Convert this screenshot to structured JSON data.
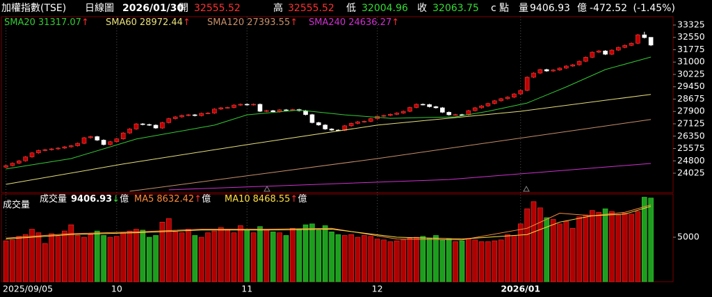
{
  "header": {
    "name": "加權指數(TSE)",
    "period": "日線圖",
    "date": "2026/01/30",
    "open_label": "開",
    "open": 32555.52,
    "high_label": "高",
    "high": 32555.52,
    "low_label": "低",
    "low": 32004.96,
    "close_label": "收",
    "close": 32063.75,
    "close_flag": "c",
    "unit_label": "點",
    "volume_label": "量",
    "volume": 9406.93,
    "volume_unit": "億",
    "change": -472.52,
    "change_pct": "(-1.45%)"
  },
  "chart_data": [
    {
      "type": "candlestick",
      "up_color": "#c00000",
      "down_color": "#ffffff",
      "ylim": [
        22890,
        33674
      ],
      "yticks": [
        33325,
        32550,
        31775,
        31000,
        30225,
        29450,
        28675,
        27900,
        27125,
        26350,
        25575,
        24800,
        24025
      ],
      "open": [
        24400,
        24500,
        24650,
        24800,
        25050,
        25300,
        25450,
        25500,
        25550,
        25600,
        25680,
        25750,
        25900,
        26250,
        26320,
        26100,
        25820,
        26000,
        26180,
        26550,
        26800,
        27120,
        27080,
        27040,
        26860,
        27200,
        27450,
        27560,
        27650,
        27690,
        27640,
        27780,
        27800,
        28050,
        28130,
        28150,
        28300,
        28350,
        28320,
        28350,
        27910,
        27950,
        27880,
        28000,
        27990,
        28020,
        27950,
        27700,
        27200,
        27050,
        26800,
        26730,
        26720,
        27000,
        27150,
        27250,
        27280,
        27450,
        27600,
        27650,
        27720,
        27800,
        27910,
        28150,
        28350,
        28330,
        28200,
        28130,
        27850,
        27690,
        27700,
        27690,
        27950,
        28130,
        28250,
        28400,
        28570,
        28700,
        28800,
        29000,
        29220,
        30050,
        30310,
        30530,
        30440,
        30500,
        30620,
        30750,
        30830,
        31050,
        31300,
        31620,
        31700,
        31490,
        31750,
        31920,
        32050,
        32180,
        32710,
        32555.52
      ],
      "high": [
        24550,
        24700,
        24850,
        25100,
        25350,
        25500,
        25550,
        25600,
        25650,
        25730,
        25800,
        25950,
        26300,
        26370,
        26370,
        26150,
        26050,
        26230,
        26600,
        26850,
        27170,
        27170,
        27130,
        27090,
        27250,
        27500,
        27610,
        27700,
        27740,
        27740,
        27830,
        27850,
        28100,
        28180,
        28200,
        28350,
        28400,
        28400,
        28400,
        28400,
        28000,
        28000,
        28050,
        28050,
        28070,
        28070,
        28000,
        27750,
        27250,
        27100,
        26850,
        26780,
        27050,
        27200,
        27300,
        27330,
        27500,
        27650,
        27700,
        27770,
        27850,
        27960,
        28200,
        28400,
        28400,
        28380,
        28250,
        28180,
        27900,
        27750,
        27750,
        28000,
        28180,
        28300,
        28450,
        28620,
        28750,
        28850,
        29050,
        29270,
        30100,
        30360,
        30580,
        30580,
        30550,
        30670,
        30800,
        30880,
        31100,
        31350,
        31670,
        31750,
        31750,
        31800,
        31970,
        32100,
        32230,
        32760,
        32900,
        32555.52
      ],
      "low": [
        24350,
        24450,
        24600,
        24750,
        25000,
        25250,
        25400,
        25450,
        25500,
        25550,
        25630,
        25700,
        25850,
        26200,
        26050,
        25770,
        25770,
        25950,
        26130,
        26500,
        26750,
        27030,
        26990,
        26810,
        26810,
        27150,
        27400,
        27510,
        27600,
        27590,
        27590,
        27730,
        27750,
        28000,
        28080,
        28100,
        28250,
        28270,
        28270,
        27860,
        27860,
        27830,
        27830,
        27940,
        27940,
        27900,
        27650,
        27150,
        27000,
        26750,
        26680,
        26670,
        26670,
        26950,
        27100,
        27200,
        27230,
        27400,
        27550,
        27600,
        27670,
        27750,
        27860,
        28100,
        28280,
        28150,
        28080,
        27800,
        27640,
        27640,
        27640,
        27640,
        27900,
        28080,
        28200,
        28350,
        28520,
        28650,
        28750,
        28950,
        29170,
        30000,
        30260,
        30390,
        30390,
        30450,
        30570,
        30700,
        30780,
        31000,
        31250,
        31570,
        31440,
        31440,
        31700,
        31870,
        32000,
        32130,
        32485,
        32004.96
      ],
      "close": [
        24500,
        24650,
        24800,
        25050,
        25300,
        25450,
        25500,
        25550,
        25600,
        25680,
        25750,
        25900,
        26250,
        26320,
        26100,
        25820,
        26000,
        26180,
        26550,
        26800,
        27120,
        27080,
        27040,
        26860,
        27200,
        27450,
        27560,
        27650,
        27690,
        27640,
        27780,
        27800,
        28050,
        28130,
        28150,
        28300,
        28350,
        28320,
        28350,
        27910,
        27950,
        27880,
        28000,
        27990,
        28020,
        27950,
        27700,
        27200,
        27050,
        26800,
        26730,
        26720,
        27000,
        27150,
        27250,
        27280,
        27450,
        27600,
        27650,
        27720,
        27800,
        27910,
        28150,
        28350,
        28330,
        28200,
        28130,
        27850,
        27690,
        27700,
        27690,
        27950,
        28130,
        28250,
        28400,
        28570,
        28700,
        28800,
        29000,
        29220,
        30050,
        30310,
        30530,
        30440,
        30500,
        30620,
        30750,
        30830,
        31050,
        31300,
        31620,
        31700,
        31490,
        31750,
        31920,
        32050,
        32180,
        32710,
        32535,
        32063.75
      ],
      "series": [
        {
          "name": "SMA20",
          "color": "#33cc33",
          "legend_value": 31317.07,
          "arrow": "↑",
          "arrow_color": "#ff3030",
          "x": [
            0,
            10,
            20,
            32,
            37,
            45,
            52,
            59,
            69,
            74,
            80,
            86,
            92,
            99
          ],
          "values": [
            24290,
            24940,
            26170,
            27040,
            27690,
            27990,
            27690,
            27470,
            27560,
            27910,
            28430,
            29440,
            30530,
            31317.07
          ]
        },
        {
          "name": "SMA60",
          "color": "#e8e07a",
          "legend_value": 28972.44,
          "arrow": "↑",
          "arrow_color": "#ff3030",
          "x": [
            0,
            18,
            37,
            57,
            79,
            99
          ],
          "values": [
            23325,
            24600,
            25815,
            27040,
            27910,
            28972.44
          ]
        },
        {
          "name": "SMA120",
          "color": "#c8906a",
          "legend_value": 27393.55,
          "arrow": "↑",
          "arrow_color": "#ff3030",
          "x": [
            19,
            57,
            99
          ],
          "values": [
            22890,
            24940,
            27393.55
          ]
        },
        {
          "name": "SMA240",
          "color": "#d030d0",
          "legend_value": 24636.27,
          "arrow": "↑",
          "arrow_color": "#ff3030",
          "x": [
            25,
            68,
            99
          ],
          "values": [
            22980,
            23630,
            24636.27
          ]
        }
      ]
    },
    {
      "type": "bar",
      "title": "成交量",
      "name": "成交量",
      "legend_value": 9406.93,
      "arrow": "↓",
      "arrow_color": "#33dd33",
      "unit": "億",
      "up_color": "#b00000",
      "down_color": "#1e9e1e",
      "ylim": [
        0,
        9850
      ],
      "yticks": [
        5000
      ],
      "xlim": [
        -0.7,
        102.4
      ],
      "xticks": [
        {
          "value": 0,
          "label": "2025/09/05"
        },
        {
          "value": 17,
          "label": "10"
        },
        {
          "value": 37,
          "label": "11"
        },
        {
          "value": 57,
          "label": "12"
        },
        {
          "value": 79,
          "label": "2026/01"
        }
      ],
      "values": [
        4600,
        4700,
        5100,
        5300,
        5900,
        5500,
        4300,
        5400,
        5100,
        5700,
        6400,
        5200,
        5000,
        5300,
        5700,
        5200,
        5000,
        5100,
        5500,
        5700,
        5900,
        5800,
        5000,
        5200,
        6700,
        7100,
        5600,
        5500,
        5900,
        5200,
        5000,
        5500,
        5700,
        6100,
        5900,
        5500,
        6300,
        5800,
        5500,
        6200,
        5800,
        5600,
        5500,
        5200,
        6000,
        5900,
        6400,
        6500,
        5800,
        6300,
        5600,
        5300,
        5200,
        5300,
        5000,
        5200,
        5100,
        4800,
        4700,
        4500,
        4600,
        4700,
        4900,
        5000,
        5100,
        4900,
        5200,
        4700,
        4800,
        4500,
        4600,
        4800,
        4700,
        4500,
        4500,
        4600,
        4700,
        5300,
        5200,
        6500,
        8200,
        9000,
        8300,
        7200,
        7000,
        6500,
        6800,
        6000,
        7300,
        7500,
        8000,
        7800,
        8200,
        7900,
        7500,
        7700,
        7600,
        7900,
        9500,
        9406.93
      ],
      "series": [
        {
          "name": "MA5",
          "color": "#ff8c3a",
          "legend_value": 8632.42,
          "arrow": "↑",
          "arrow_color": "#ff3030",
          "unit": "億",
          "x": [
            0,
            10,
            20,
            30,
            40,
            50,
            60,
            70,
            80,
            85,
            90,
            95,
            99
          ],
          "values": [
            4900,
            5400,
            5600,
            5900,
            5900,
            6000,
            4800,
            4700,
            6000,
            7700,
            7400,
            7800,
            8632.42
          ]
        },
        {
          "name": "MA10",
          "color": "#ffe040",
          "legend_value": 8468.55,
          "arrow": "↑",
          "arrow_color": "#ff3030",
          "unit": "億",
          "x": [
            0,
            10,
            20,
            30,
            40,
            50,
            60,
            70,
            80,
            85,
            90,
            95,
            99
          ],
          "values": [
            4800,
            5300,
            5500,
            5800,
            5800,
            5900,
            5000,
            4800,
            5300,
            6700,
            7400,
            7600,
            8468.55
          ]
        }
      ]
    }
  ]
}
